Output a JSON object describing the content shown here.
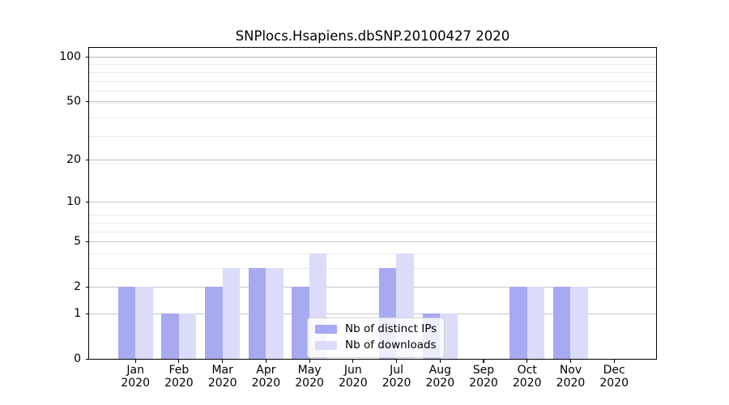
{
  "chart_data": {
    "type": "bar",
    "title": "SNPlocs.Hsapiens.dbSNP.20100427 2020",
    "categories": [
      "Jan",
      "Feb",
      "Mar",
      "Apr",
      "May",
      "Jun",
      "Jul",
      "Aug",
      "Sep",
      "Oct",
      "Nov",
      "Dec"
    ],
    "year_label": "2020",
    "series": [
      {
        "name": "Nb of distinct IPs",
        "color": "#a7a9f1",
        "values": [
          2,
          1,
          2,
          3,
          2,
          0,
          3,
          1,
          0,
          2,
          2,
          0
        ]
      },
      {
        "name": "Nb of downloads",
        "color": "#dbdcf9",
        "values": [
          2,
          1,
          3,
          3,
          4,
          0,
          4,
          1,
          0,
          2,
          2,
          0
        ]
      }
    ],
    "xlabel": "",
    "ylabel": "",
    "y_scale": "log1p",
    "y_ticks": [
      0,
      1,
      2,
      5,
      10,
      20,
      50,
      100
    ],
    "y_minor_ticks": [
      3,
      4,
      6,
      7,
      8,
      19,
      29,
      39,
      49,
      59,
      69,
      79,
      89,
      99
    ],
    "ylim": [
      0,
      115
    ],
    "grid": "both",
    "legend_position": "lower-center",
    "colors": {
      "axis": "#000000",
      "grid_major": "#c7c7c7",
      "grid_minor": "#e9e9e9",
      "legend_border": "#d2d2d2"
    }
  }
}
